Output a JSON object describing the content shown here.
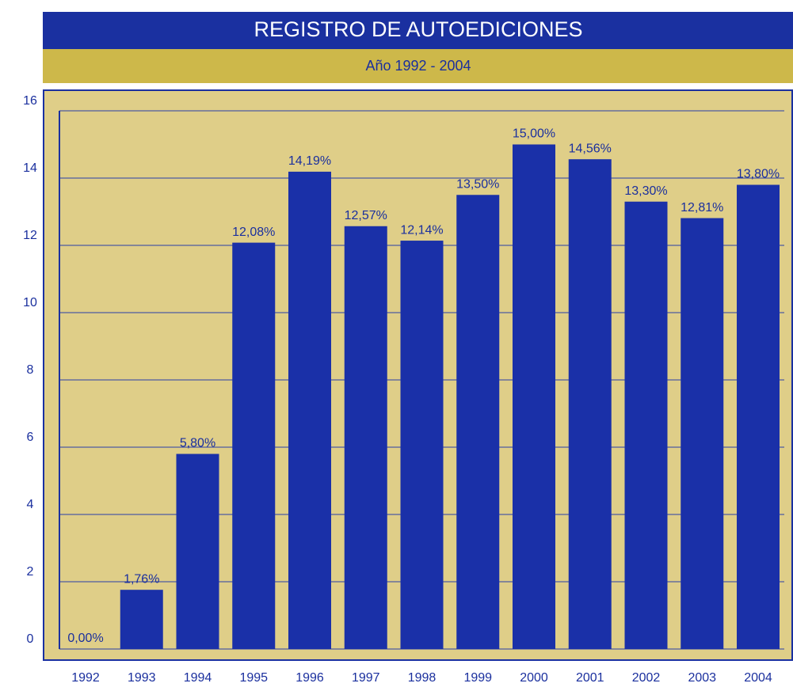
{
  "chart_data": {
    "type": "bar",
    "title": "REGISTRO DE AUTOEDICIONES",
    "subtitle": "Año 1992 - 2004",
    "categories": [
      "1992",
      "1993",
      "1994",
      "1995",
      "1996",
      "1997",
      "1998",
      "1999",
      "2000",
      "2001",
      "2002",
      "2003",
      "2004"
    ],
    "values": [
      0,
      1.76,
      5.8,
      12.08,
      14.19,
      12.57,
      12.14,
      13.5,
      15,
      14.56,
      13.3,
      12.81,
      13.8
    ],
    "value_labels": [
      "0,00%",
      "1,76%",
      "5,80%",
      "12,08%",
      "14,19%",
      "12,57%",
      "12,14%",
      "13,50%",
      "15,00%",
      "14,56%",
      "13,30%",
      "12,81%",
      "13,80%"
    ],
    "color": "#1a30a8",
    "ylim": [
      0,
      16
    ],
    "yticks": [
      0,
      2,
      4,
      6,
      8,
      10,
      12,
      14,
      16
    ],
    "grid": true
  }
}
